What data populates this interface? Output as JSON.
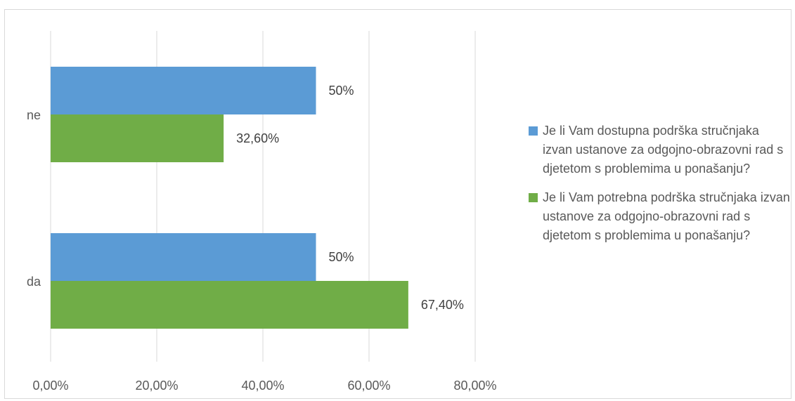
{
  "chart_data": {
    "type": "bar",
    "orientation": "horizontal",
    "categories": [
      "ne",
      "da"
    ],
    "series": [
      {
        "name": "Je li Vam dostupna podrška stručnjaka izvan ustanove za odgojno-obrazovni rad s djetetom s problemima u ponašanju?",
        "color": "#5b9bd5",
        "values": [
          50,
          50
        ],
        "labels": [
          "50%",
          "50%"
        ]
      },
      {
        "name": "Je li Vam potrebna podrška stručnjaka izvan ustanove za odgojno-obrazovni rad s djetetom s problemima u ponašanju?",
        "color": "#70ad47",
        "values": [
          32.6,
          67.4
        ],
        "labels": [
          "32,60%",
          "67,40%"
        ]
      }
    ],
    "xlim": [
      0,
      80
    ],
    "xticks": [
      0,
      20,
      40,
      60,
      80
    ],
    "xtick_labels": [
      "0,00%",
      "20,00%",
      "40,00%",
      "60,00%",
      "80,00%"
    ],
    "grid": "vertical",
    "legend_position": "right",
    "title": "",
    "xlabel": "",
    "ylabel": ""
  }
}
